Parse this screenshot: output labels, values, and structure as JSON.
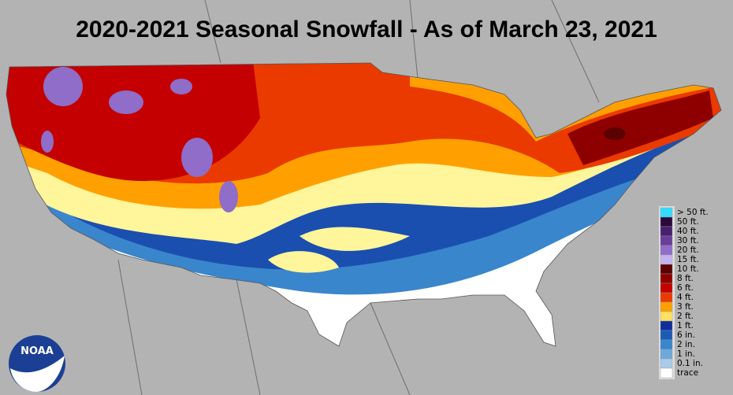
{
  "title": "2020-2021 Seasonal Snowfall - As of March 23, 2021",
  "logo": "NOAA",
  "legend": [
    {
      "label": "> 50 ft.",
      "color": "#33dcff"
    },
    {
      "label": "50 ft.",
      "color": "#2a0a3c"
    },
    {
      "label": "40 ft.",
      "color": "#4a1f6e"
    },
    {
      "label": "30 ft.",
      "color": "#6a3d9a"
    },
    {
      "label": "20 ft.",
      "color": "#8f6dc8"
    },
    {
      "label": "15 ft.",
      "color": "#c4b2ee"
    },
    {
      "label": "10 ft.",
      "color": "#5c0000"
    },
    {
      "label": "8 ft.",
      "color": "#8e0000"
    },
    {
      "label": "6 ft.",
      "color": "#c40000"
    },
    {
      "label": "4 ft.",
      "color": "#ea3a00"
    },
    {
      "label": "3 ft.",
      "color": "#ffa000"
    },
    {
      "label": "2 ft.",
      "color": "#ffe060"
    },
    {
      "label": "1 ft.",
      "color": "#0f2e9c"
    },
    {
      "label": "6 in.",
      "color": "#1a5cb5"
    },
    {
      "label": "2 in.",
      "color": "#3a86cc"
    },
    {
      "label": "1 in.",
      "color": "#6fa8dc"
    },
    {
      "label": "0.1 in.",
      "color": "#a8cbe8"
    },
    {
      "label": "trace",
      "color": "#ffffff"
    }
  ]
}
